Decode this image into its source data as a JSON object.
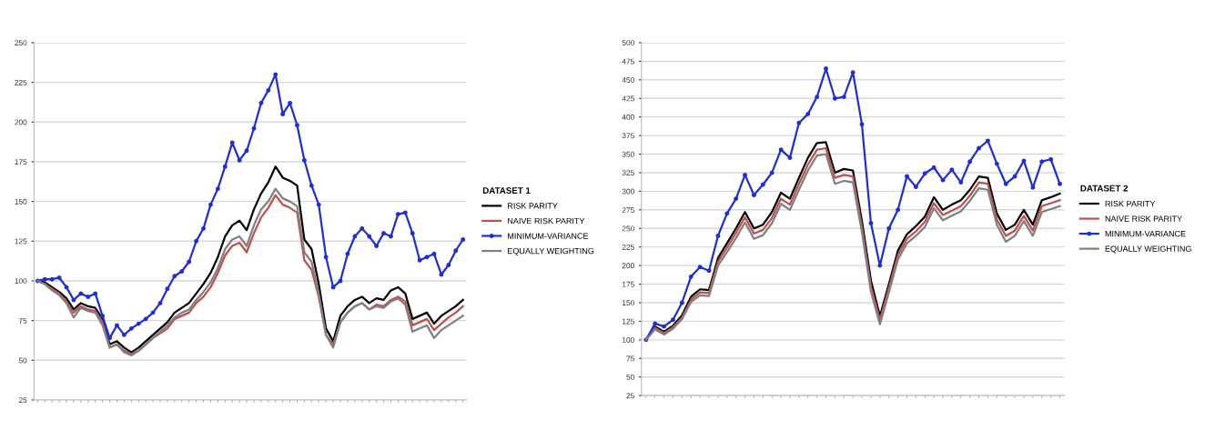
{
  "chart_data": [
    {
      "type": "line",
      "categories": [
        null,
        null,
        null,
        null,
        null,
        null,
        null,
        null,
        null,
        null,
        null,
        null,
        null,
        null,
        null,
        null,
        null,
        null,
        null,
        null,
        null,
        null,
        null,
        null,
        null,
        null,
        null,
        null,
        null,
        null,
        null,
        null,
        null,
        null,
        null,
        null,
        null,
        null,
        null,
        null,
        null,
        null,
        null,
        null,
        null,
        null,
        null,
        null,
        null,
        null,
        null,
        null,
        null,
        null,
        null,
        null,
        null,
        null,
        null,
        null
      ],
      "ylim": [
        25,
        250
      ],
      "yticks": [
        25,
        50,
        75,
        100,
        125,
        150,
        175,
        200,
        225,
        250
      ],
      "grid": "y",
      "legend": "right",
      "legend_title": "DATASET 1",
      "tick_labels": "y",
      "series": [
        {
          "name": "RISK PARITY",
          "color": "#000000",
          "marker": "none",
          "values": [
            100,
            99,
            96,
            93,
            89,
            82,
            86,
            84,
            83,
            76,
            60,
            62,
            58,
            55,
            58,
            62,
            66,
            70,
            74,
            80,
            83,
            86,
            92,
            98,
            105,
            115,
            128,
            135,
            138,
            132,
            145,
            155,
            162,
            172,
            165,
            163,
            160,
            126,
            120,
            98,
            70,
            62,
            78,
            84,
            88,
            90,
            86,
            89,
            88,
            94,
            96,
            92,
            76,
            78,
            80,
            73,
            78,
            81,
            84,
            88
          ]
        },
        {
          "name": "NAIVE RISK PARITY",
          "color": "#c0504d",
          "marker": "none",
          "values": [
            100,
            98,
            95,
            92,
            87,
            80,
            84,
            82,
            81,
            74,
            58,
            60,
            56,
            54,
            56,
            60,
            64,
            67,
            70,
            76,
            78,
            80,
            86,
            90,
            96,
            105,
            116,
            122,
            124,
            118,
            130,
            140,
            146,
            154,
            148,
            146,
            143,
            113,
            107,
            90,
            66,
            60,
            74,
            80,
            84,
            86,
            82,
            85,
            84,
            88,
            90,
            87,
            72,
            74,
            76,
            69,
            73,
            77,
            80,
            84
          ]
        },
        {
          "name": "MINIMUM-VARIANCE",
          "color": "#1f2fd8",
          "marker": "circle",
          "values": [
            100,
            101,
            101,
            102,
            96,
            88,
            92,
            90,
            92,
            78,
            64,
            72,
            66,
            70,
            73,
            76,
            80,
            86,
            95,
            103,
            106,
            112,
            125,
            133,
            148,
            158,
            172,
            187,
            176,
            182,
            196,
            212,
            220,
            230,
            205,
            212,
            198,
            176,
            160,
            148,
            115,
            96,
            100,
            117,
            128,
            133,
            128,
            122,
            130,
            128,
            142,
            143,
            130,
            113,
            115,
            117,
            104,
            110,
            119,
            126
          ]
        },
        {
          "name": "EQUALLY WEIGHTING",
          "color": "#808080",
          "marker": "none",
          "values": [
            100,
            98,
            94,
            91,
            86,
            77,
            83,
            81,
            80,
            72,
            58,
            60,
            55,
            53,
            56,
            60,
            64,
            68,
            72,
            77,
            80,
            82,
            88,
            93,
            99,
            108,
            120,
            126,
            128,
            122,
            135,
            145,
            150,
            158,
            152,
            150,
            147,
            118,
            112,
            92,
            66,
            58,
            74,
            80,
            84,
            86,
            82,
            84,
            83,
            87,
            89,
            85,
            68,
            70,
            72,
            64,
            69,
            72,
            75,
            78
          ]
        }
      ]
    },
    {
      "type": "line",
      "categories": [
        null,
        null,
        null,
        null,
        null,
        null,
        null,
        null,
        null,
        null,
        null,
        null,
        null,
        null,
        null,
        null,
        null,
        null,
        null,
        null,
        null,
        null,
        null,
        null,
        null,
        null,
        null,
        null,
        null,
        null,
        null,
        null,
        null,
        null,
        null,
        null,
        null,
        null,
        null,
        null,
        null,
        null,
        null,
        null,
        null,
        null,
        null
      ],
      "ylim": [
        25,
        500
      ],
      "yticks": [
        25,
        50,
        75,
        100,
        125,
        150,
        175,
        200,
        225,
        250,
        275,
        300,
        325,
        350,
        375,
        400,
        425,
        450,
        475,
        500
      ],
      "grid": "y",
      "legend": "right",
      "legend_title": "DATASET 2",
      "tick_labels": "y",
      "series": [
        {
          "name": "RISK PARITY",
          "color": "#000000",
          "marker": "none",
          "values": [
            100,
            118,
            111,
            119,
            133,
            158,
            168,
            167,
            210,
            230,
            250,
            272,
            250,
            255,
            272,
            298,
            290,
            318,
            345,
            365,
            366,
            325,
            330,
            328,
            260,
            180,
            132,
            175,
            220,
            242,
            253,
            266,
            292,
            275,
            282,
            288,
            302,
            320,
            318,
            270,
            248,
            255,
            275,
            255,
            288,
            292,
            297
          ]
        },
        {
          "name": "NAIVE RISK PARITY",
          "color": "#c0504d",
          "marker": "none",
          "values": [
            100,
            116,
            109,
            117,
            130,
            154,
            164,
            163,
            205,
            224,
            244,
            265,
            243,
            248,
            264,
            290,
            282,
            310,
            336,
            356,
            358,
            318,
            322,
            320,
            252,
            172,
            127,
            170,
            214,
            236,
            246,
            259,
            284,
            268,
            274,
            280,
            294,
            312,
            310,
            262,
            240,
            247,
            267,
            247,
            280,
            284,
            288
          ]
        },
        {
          "name": "MINIMUM-VARIANCE",
          "color": "#1f2fd8",
          "marker": "circle",
          "values": [
            100,
            122,
            118,
            127,
            150,
            185,
            198,
            193,
            240,
            270,
            290,
            322,
            295,
            309,
            325,
            356,
            345,
            392,
            404,
            427,
            465,
            425,
            427,
            460,
            390,
            257,
            200,
            250,
            275,
            320,
            306,
            324,
            332,
            315,
            329,
            312,
            340,
            358,
            368,
            337,
            310,
            320,
            341,
            305,
            340,
            343,
            310
          ]
        },
        {
          "name": "EQUALLY WEIGHTING",
          "color": "#808080",
          "marker": "none",
          "values": [
            100,
            114,
            107,
            115,
            128,
            151,
            160,
            159,
            200,
            218,
            237,
            258,
            236,
            241,
            257,
            283,
            275,
            302,
            328,
            348,
            350,
            310,
            314,
            312,
            245,
            165,
            121,
            164,
            208,
            230,
            240,
            252,
            277,
            261,
            267,
            273,
            287,
            304,
            302,
            255,
            232,
            240,
            260,
            240,
            272,
            276,
            280
          ]
        }
      ]
    }
  ]
}
